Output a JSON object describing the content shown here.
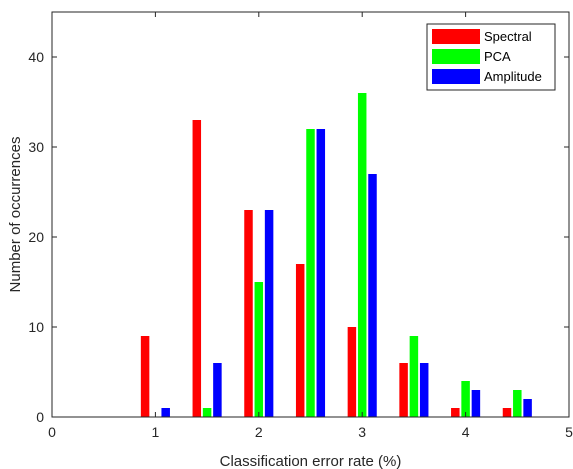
{
  "chart_data": {
    "type": "bar",
    "title": "",
    "xlabel": "Classification error rate (%)",
    "ylabel": "Number of occurrences",
    "xlim": [
      0,
      5
    ],
    "ylim": [
      0,
      45
    ],
    "xticks": [
      0,
      1,
      2,
      3,
      4,
      5
    ],
    "yticks": [
      0,
      10,
      20,
      30,
      40
    ],
    "grid": false,
    "legend_position": "top-right",
    "bin_centers": [
      0.5,
      1.0,
      1.5,
      2.0,
      2.5,
      3.0,
      3.5,
      4.0,
      4.5
    ],
    "series": [
      {
        "name": "Spectral",
        "color": "#ff0000",
        "values": [
          0,
          9,
          33,
          23,
          17,
          10,
          6,
          1,
          1
        ]
      },
      {
        "name": "PCA",
        "color": "#00ff00",
        "values": [
          0,
          0,
          1,
          15,
          32,
          36,
          9,
          4,
          3
        ]
      },
      {
        "name": "Amplitude",
        "color": "#0000ff",
        "values": [
          0,
          1,
          6,
          23,
          32,
          27,
          6,
          3,
          2
        ]
      }
    ]
  }
}
